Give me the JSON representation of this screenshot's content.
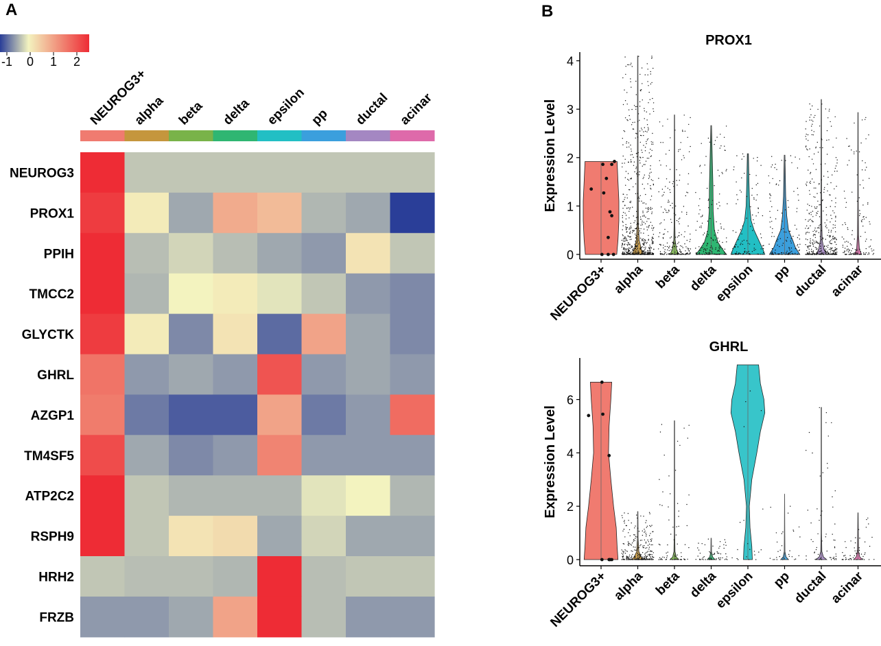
{
  "panels": {
    "a_label": "A",
    "b_label": "B"
  },
  "colors": {
    "scale_low": "#2a3e98",
    "scale_mid": "#f3f3bf",
    "scale_high": "#ee2c35",
    "group_colors": [
      "#f07b70",
      "#c5963d",
      "#79b349",
      "#2fb672",
      "#22bfc4",
      "#3b9fdd",
      "#a487c2",
      "#de6aaa"
    ]
  },
  "chart_data": [
    {
      "type": "heatmap",
      "title": "",
      "columns": [
        "NEUROG3+",
        "alpha",
        "beta",
        "delta",
        "epsilon",
        "pp",
        "ductal",
        "acinar"
      ],
      "rows": [
        "NEUROG3",
        "PROX1",
        "PPIH",
        "TMCC2",
        "GLYCTK",
        "GHRL",
        "AZGP1",
        "TM4SF5",
        "ATP2C2",
        "RSPH9",
        "HRH2",
        "FRZB"
      ],
      "values": [
        [
          2.5,
          -0.3,
          -0.3,
          -0.3,
          -0.3,
          -0.3,
          -0.3,
          -0.3
        ],
        [
          2.3,
          0.1,
          -0.5,
          0.9,
          0.7,
          -0.4,
          -0.5,
          -1.3
        ],
        [
          2.5,
          -0.35,
          -0.2,
          -0.35,
          -0.5,
          -0.6,
          0.2,
          -0.3
        ],
        [
          2.5,
          -0.4,
          0.0,
          0.1,
          -0.1,
          -0.3,
          -0.6,
          -0.7
        ],
        [
          2.3,
          0.1,
          -0.7,
          0.2,
          -0.9,
          1.0,
          -0.5,
          -0.7
        ],
        [
          1.6,
          -0.6,
          -0.5,
          -0.6,
          2.0,
          -0.6,
          -0.5,
          -0.6
        ],
        [
          1.5,
          -0.8,
          -1.0,
          -1.0,
          1.0,
          -0.8,
          -0.6,
          1.7
        ],
        [
          2.1,
          -0.5,
          -0.7,
          -0.6,
          1.4,
          -0.6,
          -0.6,
          -0.6
        ],
        [
          2.5,
          -0.3,
          -0.4,
          -0.4,
          -0.4,
          -0.1,
          0.0,
          -0.4
        ],
        [
          2.5,
          -0.3,
          0.2,
          0.3,
          -0.5,
          -0.2,
          -0.5,
          -0.5
        ],
        [
          -0.3,
          -0.35,
          -0.35,
          -0.4,
          2.5,
          -0.35,
          -0.3,
          -0.3
        ],
        [
          -0.6,
          -0.6,
          -0.5,
          1.0,
          2.5,
          -0.35,
          -0.6,
          -0.6
        ]
      ],
      "colorbar": {
        "ticks": [
          "-1",
          "0",
          "1",
          "2"
        ],
        "range": [
          -1.2,
          2.5
        ]
      }
    },
    {
      "type": "violin",
      "title": "PROX1",
      "xlabel": "",
      "ylabel": "Expression Level",
      "categories": [
        "NEUROG3+",
        "alpha",
        "beta",
        "delta",
        "epsilon",
        "pp",
        "ductal",
        "acinar"
      ],
      "ylim": [
        0,
        4.2
      ],
      "yticks": [
        "0",
        "1",
        "2",
        "3",
        "4"
      ],
      "max_values": [
        1.92,
        4.1,
        2.88,
        2.66,
        2.08,
        2.05,
        3.2,
        2.93
      ],
      "shapes": [
        [
          [
            0,
            0.88
          ],
          [
            0.3,
            0.95
          ],
          [
            0.7,
            1.0
          ],
          [
            1.1,
            1.0
          ],
          [
            1.5,
            0.95
          ],
          [
            1.92,
            0.9
          ]
        ],
        [
          [
            0,
            0.35
          ],
          [
            0.1,
            0.2
          ],
          [
            0.3,
            0.08
          ],
          [
            0.6,
            0.04
          ],
          [
            1.0,
            0.03
          ],
          [
            2.0,
            0.02
          ],
          [
            4.1,
            0.01
          ]
        ],
        [
          [
            0,
            0.25
          ],
          [
            0.1,
            0.12
          ],
          [
            0.3,
            0.04
          ],
          [
            0.6,
            0.025
          ],
          [
            1.2,
            0.02
          ],
          [
            2.88,
            0.01
          ]
        ],
        [
          [
            0,
            0.85
          ],
          [
            0.1,
            0.65
          ],
          [
            0.25,
            0.38
          ],
          [
            0.5,
            0.18
          ],
          [
            0.9,
            0.11
          ],
          [
            1.4,
            0.1
          ],
          [
            2.0,
            0.06
          ],
          [
            2.66,
            0.02
          ]
        ],
        [
          [
            0,
            0.95
          ],
          [
            0.1,
            0.85
          ],
          [
            0.3,
            0.6
          ],
          [
            0.5,
            0.35
          ],
          [
            0.7,
            0.18
          ],
          [
            1.0,
            0.1
          ],
          [
            1.5,
            0.06
          ],
          [
            2.08,
            0.03
          ]
        ],
        [
          [
            0,
            0.85
          ],
          [
            0.15,
            0.6
          ],
          [
            0.3,
            0.45
          ],
          [
            0.5,
            0.22
          ],
          [
            0.8,
            0.12
          ],
          [
            1.2,
            0.06
          ],
          [
            2.05,
            0.02
          ]
        ],
        [
          [
            0,
            0.3
          ],
          [
            0.1,
            0.15
          ],
          [
            0.3,
            0.05
          ],
          [
            0.6,
            0.03
          ],
          [
            1.2,
            0.02
          ],
          [
            3.2,
            0.01
          ]
        ],
        [
          [
            0,
            0.2
          ],
          [
            0.1,
            0.08
          ],
          [
            0.4,
            0.03
          ],
          [
            1.0,
            0.02
          ],
          [
            2.93,
            0.01
          ]
        ]
      ],
      "cell_density": [
        10,
        700,
        220,
        160,
        110,
        140,
        420,
        140
      ],
      "neurog3_points": [
        [
          -0.55,
          1.35
        ],
        [
          0.1,
          1.86
        ],
        [
          0.3,
          1.57
        ],
        [
          0.15,
          1.27
        ],
        [
          0.6,
          1.86
        ],
        [
          0.75,
          1.92
        ],
        [
          0.5,
          0.88
        ],
        [
          0.6,
          0.8
        ],
        [
          0.4,
          0.35
        ],
        [
          0.05,
          0.0
        ],
        [
          0.4,
          0.0
        ],
        [
          0.7,
          0.0
        ]
      ]
    },
    {
      "type": "violin",
      "title": "GHRL",
      "xlabel": "",
      "ylabel": "Expression Level",
      "categories": [
        "NEUROG3+",
        "alpha",
        "beta",
        "delta",
        "epsilon",
        "pp",
        "ductal",
        "acinar"
      ],
      "ylim": [
        0,
        7.3
      ],
      "yticks": [
        "0",
        "2",
        "4",
        "6"
      ],
      "max_values": [
        6.65,
        1.8,
        5.2,
        0.8,
        7.3,
        2.45,
        5.7,
        1.75
      ],
      "shapes": [
        [
          [
            0,
            0.95
          ],
          [
            0.5,
            0.9
          ],
          [
            1.2,
            0.85
          ],
          [
            2.0,
            0.7
          ],
          [
            3.0,
            0.55
          ],
          [
            4.0,
            0.42
          ],
          [
            5.0,
            0.45
          ],
          [
            6.0,
            0.55
          ],
          [
            6.65,
            0.6
          ]
        ],
        [
          [
            0,
            0.35
          ],
          [
            0.1,
            0.2
          ],
          [
            0.3,
            0.06
          ],
          [
            0.8,
            0.02
          ],
          [
            1.8,
            0.01
          ]
        ],
        [
          [
            0,
            0.25
          ],
          [
            0.1,
            0.1
          ],
          [
            0.3,
            0.03
          ],
          [
            1.0,
            0.015
          ],
          [
            5.2,
            0.01
          ]
        ],
        [
          [
            0,
            0.22
          ],
          [
            0.1,
            0.08
          ],
          [
            0.3,
            0.02
          ],
          [
            0.8,
            0.01
          ]
        ],
        [
          [
            0,
            0.25
          ],
          [
            0.5,
            0.22
          ],
          [
            1.2,
            0.12
          ],
          [
            2.0,
            0.08
          ],
          [
            3.0,
            0.22
          ],
          [
            4.0,
            0.5
          ],
          [
            4.8,
            0.7
          ],
          [
            5.5,
            0.95
          ],
          [
            6.0,
            0.9
          ],
          [
            6.6,
            0.7
          ],
          [
            7.3,
            0.6
          ]
        ],
        [
          [
            0,
            0.22
          ],
          [
            0.1,
            0.08
          ],
          [
            0.3,
            0.02
          ],
          [
            1.0,
            0.01
          ],
          [
            2.45,
            0.005
          ]
        ],
        [
          [
            0,
            0.3
          ],
          [
            0.1,
            0.12
          ],
          [
            0.3,
            0.03
          ],
          [
            1.0,
            0.015
          ],
          [
            5.7,
            0.01
          ]
        ],
        [
          [
            0,
            0.25
          ],
          [
            0.1,
            0.1
          ],
          [
            0.3,
            0.03
          ],
          [
            1.75,
            0.01
          ]
        ]
      ],
      "cell_density": [
        8,
        260,
        70,
        60,
        20,
        30,
        60,
        50
      ],
      "neurog3_points": [
        [
          -0.7,
          5.4
        ],
        [
          0.05,
          6.65
        ],
        [
          0.1,
          5.45
        ],
        [
          0.45,
          3.9
        ],
        [
          0.05,
          0.0
        ],
        [
          0.45,
          0.0
        ],
        [
          0.6,
          0.0
        ],
        [
          0.5,
          0.0
        ]
      ]
    }
  ]
}
